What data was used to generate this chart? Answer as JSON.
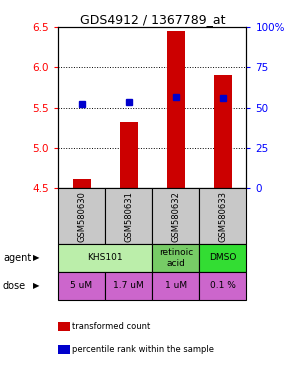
{
  "title": "GDS4912 / 1367789_at",
  "samples": [
    "GSM580630",
    "GSM580631",
    "GSM580632",
    "GSM580633"
  ],
  "bar_values": [
    4.62,
    5.32,
    6.45,
    5.91
  ],
  "bar_bottom": 4.5,
  "percentile_values": [
    5.55,
    5.57,
    5.63,
    5.62
  ],
  "ylim": [
    4.5,
    6.5
  ],
  "yticks_left": [
    4.5,
    5.0,
    5.5,
    6.0,
    6.5
  ],
  "yticks_right": [
    0,
    25,
    50,
    75,
    100
  ],
  "ytick_labels_right": [
    "0",
    "25",
    "50",
    "75",
    "100%"
  ],
  "bar_color": "#cc0000",
  "dot_color": "#0000cc",
  "doses": [
    "5 uM",
    "1.7 uM",
    "1 uM",
    "0.1 %"
  ],
  "dose_color": "#cc66cc",
  "sample_bg_color": "#c8c8c8",
  "agent_groups": [
    {
      "start": 0,
      "end": 2,
      "label": "KHS101",
      "color": "#bbeeaa"
    },
    {
      "start": 2,
      "end": 3,
      "label": "retinoic\nacid",
      "color": "#77cc66"
    },
    {
      "start": 3,
      "end": 4,
      "label": "DMSO",
      "color": "#33dd33"
    }
  ]
}
